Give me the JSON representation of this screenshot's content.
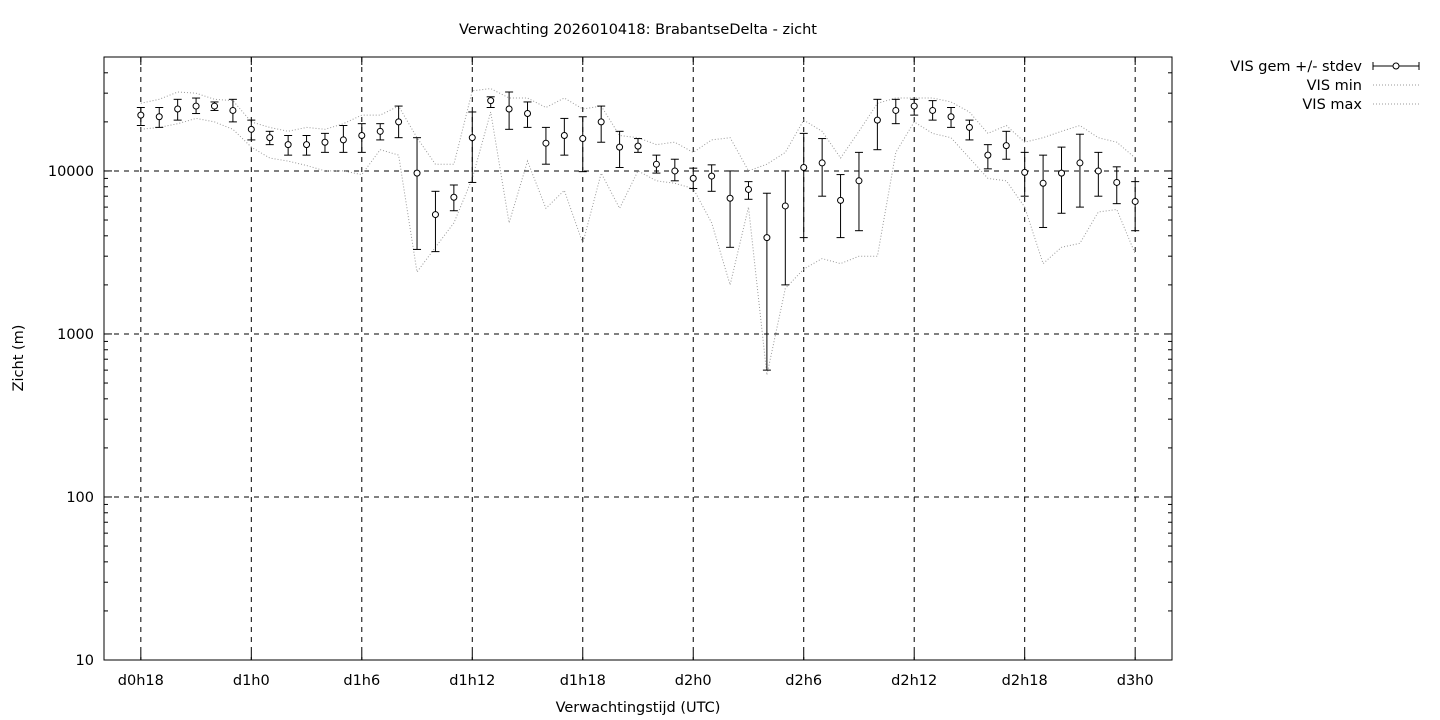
{
  "chart_data": {
    "type": "line",
    "title": "Verwachting 2026010418: BrabantseDelta - zicht",
    "xlabel": "Verwachtingstijd (UTC)",
    "ylabel": "Zicht (m)",
    "y_scale": "log",
    "ylim": [
      10,
      50000
    ],
    "xlim": [
      -2,
      56
    ],
    "x_unit": "hours since d0h18",
    "x_ticks": [
      {
        "x": 0,
        "label": "d0h18"
      },
      {
        "x": 6,
        "label": "d1h0"
      },
      {
        "x": 12,
        "label": "d1h6"
      },
      {
        "x": 18,
        "label": "d1h12"
      },
      {
        "x": 24,
        "label": "d1h18"
      },
      {
        "x": 30,
        "label": "d2h0"
      },
      {
        "x": 36,
        "label": "d2h6"
      },
      {
        "x": 42,
        "label": "d2h12"
      },
      {
        "x": 48,
        "label": "d2h18"
      },
      {
        "x": 54,
        "label": "d3h0"
      }
    ],
    "y_ticks": [
      {
        "y": 10,
        "label": "10"
      },
      {
        "y": 100,
        "label": "100"
      },
      {
        "y": 1000,
        "label": "1000"
      },
      {
        "y": 10000,
        "label": "10000"
      }
    ],
    "grid": true,
    "legend_position": "outside-top-right",
    "series": [
      {
        "name": "VIS gem +/- stdev",
        "style": "errorbars",
        "x": [
          0,
          1,
          2,
          3,
          4,
          5,
          6,
          7,
          8,
          9,
          10,
          11,
          12,
          13,
          14,
          15,
          16,
          17,
          18,
          19,
          20,
          21,
          22,
          23,
          24,
          25,
          26,
          27,
          28,
          29,
          30,
          31,
          32,
          33,
          34,
          35,
          36,
          37,
          38,
          39,
          40,
          41,
          42,
          43,
          44,
          45,
          46,
          47,
          48,
          49,
          50,
          51,
          52,
          53,
          54
        ],
        "y": [
          22000,
          21500,
          24000,
          25000,
          25000,
          23500,
          18000,
          16000,
          14500,
          14500,
          15000,
          15500,
          16500,
          17500,
          20000,
          9700,
          5400,
          6900,
          16000,
          27000,
          24000,
          22500,
          14800,
          16500,
          15800,
          20000,
          14000,
          14200,
          11000,
          10000,
          9000,
          9300,
          6800,
          7700,
          3900,
          6100,
          10500,
          11200,
          6600,
          8700,
          20500,
          23500,
          25000,
          23500,
          21500,
          18500,
          12500,
          14300,
          9800,
          8400,
          9700,
          11200,
          10000,
          8500,
          6500
        ],
        "low": [
          19000,
          18500,
          20500,
          22500,
          23500,
          20000,
          15500,
          14500,
          12500,
          12500,
          13000,
          13000,
          13000,
          15500,
          16000,
          3300,
          3200,
          5700,
          8500,
          24500,
          18000,
          18500,
          11000,
          12500,
          9900,
          15000,
          10500,
          13000,
          9700,
          8700,
          7800,
          7500,
          3400,
          6700,
          600,
          2000,
          3900,
          7000,
          3900,
          4300,
          13500,
          19500,
          22000,
          20500,
          18500,
          15500,
          10300,
          11800,
          7000,
          4500,
          5500,
          6000,
          7000,
          6300,
          4300
        ],
        "high": [
          24500,
          24500,
          27500,
          28000,
          26500,
          27500,
          20500,
          17500,
          16500,
          16500,
          17000,
          19000,
          19500,
          19500,
          25000,
          16000,
          7500,
          8200,
          23000,
          28500,
          30500,
          26500,
          18500,
          21000,
          21500,
          25000,
          17500,
          15800,
          12500,
          11800,
          10400,
          10900,
          10000,
          8600,
          7300,
          10000,
          17000,
          15800,
          9500,
          13000,
          27500,
          27500,
          27500,
          27000,
          24500,
          20500,
          14500,
          17500,
          13000,
          12500,
          14000,
          16800,
          13000,
          10600,
          8600
        ]
      },
      {
        "name": "VIS min",
        "style": "dotted",
        "x": [
          0,
          1,
          2,
          3,
          4,
          5,
          6,
          7,
          8,
          9,
          10,
          11,
          12,
          13,
          14,
          15,
          16,
          17,
          18,
          19,
          20,
          21,
          22,
          23,
          24,
          25,
          26,
          27,
          28,
          29,
          30,
          31,
          32,
          33,
          34,
          35,
          36,
          37,
          38,
          39,
          40,
          41,
          42,
          43,
          44,
          45,
          46,
          47,
          48,
          49,
          50,
          51,
          52,
          53,
          54
        ],
        "y": [
          18000,
          18500,
          19500,
          21000,
          20000,
          18000,
          14000,
          12000,
          11500,
          10800,
          10000,
          10000,
          9500,
          13500,
          12500,
          2400,
          3400,
          4800,
          9000,
          23000,
          4800,
          11500,
          5900,
          7600,
          3600,
          9700,
          5900,
          10000,
          8700,
          8400,
          7800,
          4800,
          2000,
          6000,
          560,
          1900,
          2500,
          2900,
          2700,
          3000,
          3000,
          13000,
          20000,
          17000,
          16000,
          12000,
          9000,
          8700,
          6000,
          2700,
          3400,
          3600,
          5600,
          5800,
          3100
        ]
      },
      {
        "name": "VIS max",
        "style": "dotted",
        "x": [
          0,
          1,
          2,
          3,
          4,
          5,
          6,
          7,
          8,
          9,
          10,
          11,
          12,
          13,
          14,
          15,
          16,
          17,
          18,
          19,
          20,
          21,
          22,
          23,
          24,
          25,
          26,
          27,
          28,
          29,
          30,
          31,
          32,
          33,
          34,
          35,
          36,
          37,
          38,
          39,
          40,
          41,
          42,
          43,
          44,
          45,
          46,
          47,
          48,
          49,
          50,
          51,
          52,
          53,
          54
        ],
        "y": [
          26000,
          27500,
          30500,
          30000,
          27500,
          27000,
          20000,
          18500,
          17500,
          18500,
          18000,
          19500,
          22000,
          22000,
          25000,
          16000,
          11000,
          11000,
          31000,
          32000,
          28000,
          28000,
          24500,
          28000,
          24000,
          25000,
          16500,
          16000,
          14500,
          15000,
          13000,
          15500,
          16000,
          10000,
          11000,
          13000,
          20500,
          17500,
          12000,
          17500,
          26000,
          28000,
          28000,
          28000,
          26500,
          23000,
          17000,
          19000,
          15000,
          16000,
          17500,
          19000,
          16000,
          15000,
          12000
        ]
      }
    ]
  }
}
